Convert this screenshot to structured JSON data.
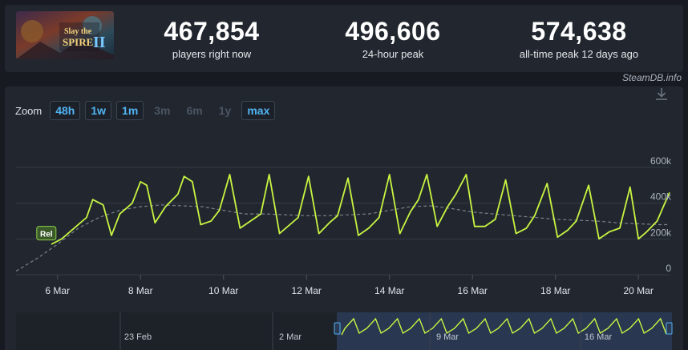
{
  "stats": [
    {
      "value": "467,854",
      "label": "players right now"
    },
    {
      "value": "496,606",
      "label": "24-hour peak"
    },
    {
      "value": "574,638",
      "label": "all-time peak 12 days ago"
    }
  ],
  "game": {
    "capsule_text_1": "Slay the",
    "capsule_text_2": "SPIRE",
    "capsule_text_3": "II"
  },
  "credit": "SteamDB.info",
  "zoom": {
    "label": "Zoom",
    "buttons": [
      {
        "label": "48h",
        "active": true
      },
      {
        "label": "1w",
        "active": true
      },
      {
        "label": "1m",
        "active": true
      },
      {
        "label": "3m",
        "active": false
      },
      {
        "label": "6m",
        "active": false
      },
      {
        "label": "1y",
        "active": false
      },
      {
        "label": "max",
        "active": true
      }
    ]
  },
  "colors": {
    "players": "#c8f542",
    "average": "#9aa0a8",
    "background": "#22272f"
  },
  "chart_data": {
    "type": "line",
    "ylim": [
      0,
      600000
    ],
    "yticks": [
      {
        "value": 0,
        "label": "0"
      },
      {
        "value": 200000,
        "label": "200k"
      },
      {
        "value": 400000,
        "label": "400k"
      },
      {
        "value": 600000,
        "label": "600k"
      }
    ],
    "xticks": [
      {
        "label": "6 Mar",
        "day": 6
      },
      {
        "label": "8 Mar",
        "day": 8
      },
      {
        "label": "10 Mar",
        "day": 10
      },
      {
        "label": "12 Mar",
        "day": 12
      },
      {
        "label": "14 Mar",
        "day": 14
      },
      {
        "label": "16 Mar",
        "day": 16
      },
      {
        "label": "18 Mar",
        "day": 18
      },
      {
        "label": "20 Mar",
        "day": 20
      }
    ],
    "annotations": [
      {
        "label": "Rel",
        "day": 5.75,
        "value": 230000
      }
    ],
    "series": [
      {
        "name": "Players",
        "points": [
          [
            5.85,
            170000
          ],
          [
            6.1,
            200000
          ],
          [
            6.4,
            260000
          ],
          [
            6.7,
            320000
          ],
          [
            6.85,
            420000
          ],
          [
            7.1,
            390000
          ],
          [
            7.3,
            220000
          ],
          [
            7.5,
            340000
          ],
          [
            7.8,
            400000
          ],
          [
            8.0,
            520000
          ],
          [
            8.15,
            500000
          ],
          [
            8.35,
            290000
          ],
          [
            8.6,
            380000
          ],
          [
            8.9,
            450000
          ],
          [
            9.05,
            550000
          ],
          [
            9.25,
            520000
          ],
          [
            9.45,
            280000
          ],
          [
            9.7,
            300000
          ],
          [
            9.9,
            360000
          ],
          [
            10.15,
            560000
          ],
          [
            10.4,
            260000
          ],
          [
            10.65,
            300000
          ],
          [
            10.9,
            340000
          ],
          [
            11.1,
            560000
          ],
          [
            11.35,
            230000
          ],
          [
            11.6,
            280000
          ],
          [
            11.8,
            320000
          ],
          [
            12.05,
            550000
          ],
          [
            12.3,
            230000
          ],
          [
            12.55,
            290000
          ],
          [
            12.75,
            330000
          ],
          [
            13.0,
            540000
          ],
          [
            13.25,
            220000
          ],
          [
            13.5,
            260000
          ],
          [
            13.75,
            320000
          ],
          [
            14.0,
            560000
          ],
          [
            14.25,
            230000
          ],
          [
            14.5,
            350000
          ],
          [
            14.7,
            420000
          ],
          [
            14.9,
            560000
          ],
          [
            15.15,
            270000
          ],
          [
            15.4,
            380000
          ],
          [
            15.6,
            450000
          ],
          [
            15.85,
            560000
          ],
          [
            16.05,
            270000
          ],
          [
            16.3,
            270000
          ],
          [
            16.55,
            310000
          ],
          [
            16.8,
            530000
          ],
          [
            17.05,
            230000
          ],
          [
            17.3,
            260000
          ],
          [
            17.5,
            330000
          ],
          [
            17.8,
            510000
          ],
          [
            18.05,
            210000
          ],
          [
            18.3,
            250000
          ],
          [
            18.5,
            300000
          ],
          [
            18.8,
            500000
          ],
          [
            19.05,
            200000
          ],
          [
            19.3,
            240000
          ],
          [
            19.55,
            260000
          ],
          [
            19.8,
            490000
          ],
          [
            20.0,
            200000
          ],
          [
            20.2,
            240000
          ],
          [
            20.45,
            300000
          ],
          [
            20.6,
            380000
          ],
          [
            20.75,
            460000
          ]
        ]
      },
      {
        "name": "Average",
        "points": [
          [
            5.0,
            20000
          ],
          [
            5.5,
            90000
          ],
          [
            6.0,
            170000
          ],
          [
            6.5,
            260000
          ],
          [
            7.0,
            320000
          ],
          [
            7.5,
            360000
          ],
          [
            8.0,
            380000
          ],
          [
            8.5,
            390000
          ],
          [
            9.0,
            385000
          ],
          [
            9.5,
            380000
          ],
          [
            10.0,
            360000
          ],
          [
            10.5,
            340000
          ],
          [
            11.0,
            340000
          ],
          [
            11.5,
            335000
          ],
          [
            12.0,
            330000
          ],
          [
            12.5,
            330000
          ],
          [
            13.0,
            335000
          ],
          [
            13.5,
            340000
          ],
          [
            14.0,
            360000
          ],
          [
            14.5,
            380000
          ],
          [
            15.0,
            385000
          ],
          [
            15.5,
            370000
          ],
          [
            16.0,
            350000
          ],
          [
            16.5,
            340000
          ],
          [
            17.0,
            330000
          ],
          [
            17.5,
            320000
          ],
          [
            18.0,
            310000
          ],
          [
            18.5,
            305000
          ],
          [
            19.0,
            300000
          ],
          [
            19.5,
            290000
          ],
          [
            20.0,
            285000
          ],
          [
            20.5,
            280000
          ],
          [
            20.75,
            280000
          ]
        ]
      }
    ],
    "navigator": {
      "labels": [
        {
          "label": "23 Feb"
        },
        {
          "label": "2 Mar"
        },
        {
          "label": "9 Mar"
        },
        {
          "label": "16 Mar"
        }
      ]
    }
  }
}
